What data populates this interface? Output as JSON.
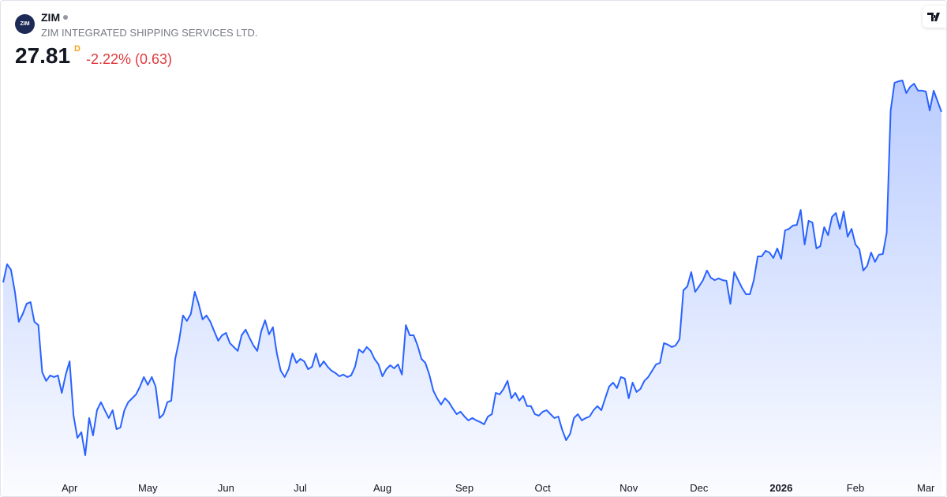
{
  "header": {
    "logo_text": "ZIM",
    "symbol": "ZIM",
    "company": "ZIM INTEGRATED SHIPPING SERVICES LTD.",
    "price": "27.81",
    "interval": "D",
    "change": "-2.22% (0.63)"
  },
  "chart_data": {
    "type": "area",
    "color": "#2962ff",
    "categories": [
      null,
      null,
      null,
      null,
      null,
      null,
      null,
      null,
      null,
      null,
      null,
      null,
      null,
      null,
      null,
      null,
      null,
      "Apr",
      null,
      null,
      null,
      null,
      null,
      null,
      null,
      null,
      null,
      null,
      null,
      null,
      null,
      null,
      null,
      null,
      null,
      null,
      null,
      "May",
      null,
      null,
      null,
      null,
      null,
      null,
      null,
      null,
      null,
      null,
      null,
      null,
      null,
      null,
      null,
      null,
      null,
      null,
      null,
      "Jun",
      null,
      null,
      null,
      null,
      null,
      null,
      null,
      null,
      null,
      null,
      null,
      null,
      null,
      null,
      null,
      null,
      null,
      null,
      "Jul",
      null,
      null,
      null,
      null,
      null,
      null,
      null,
      null,
      null,
      null,
      null,
      null,
      null,
      null,
      null,
      null,
      null,
      null,
      null,
      null,
      "Aug",
      null,
      null,
      null,
      null,
      null,
      null,
      null,
      null,
      null,
      null,
      null,
      null,
      null,
      null,
      null,
      null,
      null,
      null,
      null,
      null,
      "Sep",
      null,
      null,
      null,
      null,
      null,
      null,
      null,
      null,
      null,
      null,
      null,
      null,
      null,
      null,
      null,
      null,
      null,
      null,
      null,
      "Oct",
      null,
      null,
      null,
      null,
      null,
      null,
      null,
      null,
      null,
      null,
      null,
      null,
      null,
      null,
      null,
      null,
      null,
      null,
      null,
      null,
      null,
      "Nov",
      null,
      null,
      null,
      null,
      null,
      null,
      null,
      null,
      null,
      null,
      null,
      null,
      null,
      null,
      null,
      null,
      null,
      "Dec",
      null,
      null,
      null,
      null,
      null,
      null,
      null,
      null,
      null,
      null,
      null,
      null,
      null,
      null,
      null,
      null,
      null,
      null,
      null,
      null,
      "2026",
      null,
      null,
      null,
      null,
      null,
      null,
      null,
      null,
      null,
      null,
      null,
      null,
      null,
      null,
      null,
      null,
      null,
      null,
      "Feb",
      null,
      null,
      null,
      null,
      null,
      null,
      null,
      null,
      null,
      null,
      null,
      null,
      null,
      null,
      null,
      null,
      null,
      "Mar",
      null,
      null,
      null,
      null
    ],
    "values": [
      19.96,
      20.8,
      20.55,
      19.53,
      18.15,
      18.51,
      18.98,
      19.06,
      18.15,
      18.0,
      15.83,
      15.43,
      15.68,
      15.61,
      15.68,
      14.88,
      15.72,
      16.33,
      13.83,
      12.81,
      13.07,
      12.01,
      13.72,
      12.92,
      14.08,
      14.45,
      14.08,
      13.72,
      14.08,
      13.21,
      13.29,
      14.08,
      14.45,
      14.63,
      14.81,
      15.17,
      15.61,
      15.25,
      15.61,
      15.17,
      13.72,
      13.9,
      14.45,
      14.52,
      16.44,
      17.28,
      18.44,
      18.19,
      18.51,
      19.53,
      18.98,
      18.26,
      18.44,
      18.15,
      17.71,
      17.28,
      17.53,
      17.64,
      17.17,
      16.99,
      16.81,
      17.53,
      17.79,
      17.42,
      17.06,
      16.81,
      17.71,
      18.22,
      17.57,
      17.9,
      16.7,
      15.9,
      15.61,
      15.97,
      16.7,
      16.26,
      16.44,
      16.33,
      15.97,
      16.08,
      16.7,
      16.08,
      16.33,
      16.08,
      15.9,
      15.79,
      15.64,
      15.72,
      15.61,
      15.68,
      16.08,
      16.88,
      16.73,
      16.99,
      16.81,
      16.44,
      16.19,
      15.64,
      15.97,
      16.15,
      16.01,
      16.19,
      15.72,
      18.0,
      17.53,
      17.53,
      17.06,
      16.44,
      16.26,
      15.72,
      14.99,
      14.63,
      14.34,
      14.63,
      14.45,
      14.16,
      13.9,
      14.01,
      13.79,
      13.61,
      13.72,
      13.61,
      13.54,
      13.43,
      13.79,
      13.9,
      14.88,
      14.81,
      15.06,
      15.43,
      14.63,
      14.88,
      14.52,
      14.74,
      14.27,
      14.27,
      13.9,
      13.83,
      14.01,
      14.08,
      13.9,
      13.72,
      13.79,
      13.18,
      12.7,
      12.99,
      13.72,
      13.9,
      13.61,
      13.72,
      13.79,
      14.08,
      14.27,
      14.08,
      14.63,
      15.17,
      15.35,
      15.1,
      15.61,
      15.54,
      14.63,
      15.35,
      14.92,
      15.06,
      15.43,
      15.61,
      15.9,
      16.19,
      16.26,
      17.17,
      17.1,
      16.99,
      17.06,
      17.35,
      19.6,
      19.78,
      20.44,
      19.53,
      19.78,
      20.07,
      20.51,
      20.18,
      20.07,
      20.15,
      20.07,
      20.04,
      18.98,
      20.44,
      20.07,
      19.71,
      19.42,
      19.42,
      20.07,
      21.16,
      21.16,
      21.42,
      21.34,
      21.09,
      21.53,
      21.05,
      22.36,
      22.43,
      22.58,
      22.61,
      23.3,
      21.71,
      22.8,
      22.72,
      21.53,
      21.63,
      22.51,
      22.14,
      22.98,
      23.16,
      22.43,
      23.23,
      22.07,
      22.43,
      21.71,
      21.49,
      20.51,
      20.73,
      21.34,
      20.91,
      21.24,
      21.27,
      22.25,
      27.88,
      29.15,
      29.22,
      29.26,
      28.68,
      28.97,
      29.11,
      28.79,
      28.79,
      28.75,
      27.88,
      28.79,
      28.31,
      27.81
    ]
  }
}
